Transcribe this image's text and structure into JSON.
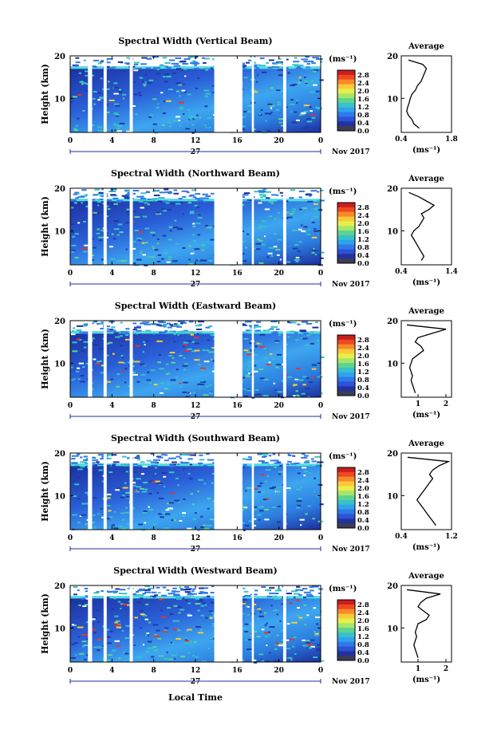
{
  "figure": {
    "xlabel": "Local Time",
    "date_label": "Nov 2017",
    "day_label": "27",
    "x_ticks": [
      "0",
      "4",
      "8",
      "12",
      "16",
      "20",
      "0"
    ],
    "y_ticks": [
      "20",
      "10"
    ],
    "ylabel": "Height (km)",
    "colorbar_unit": "(ms⁻¹)",
    "colorbar_ticks": [
      "2.8",
      "2.4",
      "2.0",
      "1.6",
      "1.2",
      "0.8",
      "0.4",
      "0.0"
    ],
    "avg_title": "Average",
    "avg_xlabel": "(ms⁻¹)",
    "colors": {
      "low": "#1c2f9e",
      "mid": "#3da6f0",
      "high": "#e5352a",
      "colorbar": [
        "#c81e1e",
        "#ee4a22",
        "#f88a28",
        "#f9c93a",
        "#e9ef4a",
        "#a5e66a",
        "#5ed391",
        "#38c1c8",
        "#2fa2ec",
        "#2f79e8",
        "#2c52d6",
        "#23319e",
        "#3a3d55"
      ]
    }
  },
  "chart_data": [
    {
      "type": "heatmap",
      "title": "Spectral Width (Vertical Beam)",
      "x_unit": "hour (local time)",
      "xlim": [
        0,
        24
      ],
      "ylabel": "Height (km)",
      "ylim": [
        2,
        20
      ],
      "color_range": [
        0.0,
        2.8
      ],
      "data_gaps_hours": [
        [
          1.7,
          2.1
        ],
        [
          3.2,
          3.5
        ],
        [
          5.7,
          6.0
        ],
        [
          13.8,
          16.5
        ],
        [
          17.4,
          17.6
        ],
        [
          20.4,
          20.7
        ]
      ],
      "average_profile": {
        "xlim": [
          0.4,
          1.8
        ],
        "x_ticks": [
          "0.4",
          "1.8"
        ],
        "height_km": [
          3,
          4,
          5,
          6,
          7,
          8,
          9,
          10,
          11,
          12,
          13,
          14,
          15,
          16,
          17,
          18,
          19
        ],
        "width_ms": [
          0.9,
          0.75,
          0.7,
          0.6,
          0.55,
          0.58,
          0.62,
          0.65,
          0.7,
          0.8,
          0.85,
          0.95,
          1.0,
          1.05,
          1.1,
          1.0,
          0.6
        ]
      }
    },
    {
      "type": "heatmap",
      "title": "Spectral Width (Northward Beam)",
      "x_unit": "hour (local time)",
      "xlim": [
        0,
        24
      ],
      "ylabel": "Height (km)",
      "ylim": [
        2,
        20
      ],
      "color_range": [
        0.0,
        2.8
      ],
      "data_gaps_hours": [
        [
          1.7,
          2.1
        ],
        [
          3.2,
          3.5
        ],
        [
          5.7,
          6.0
        ],
        [
          13.8,
          16.5
        ],
        [
          17.4,
          17.6
        ],
        [
          20.4,
          20.7
        ]
      ],
      "average_profile": {
        "xlim": [
          0.4,
          1.4
        ],
        "x_ticks": [
          "0.4",
          "1.4"
        ],
        "height_km": [
          3,
          4,
          5,
          6,
          7,
          8,
          9,
          10,
          11,
          12,
          13,
          14,
          15,
          16,
          17,
          18,
          19
        ],
        "width_ms": [
          0.8,
          0.85,
          0.8,
          0.75,
          0.7,
          0.65,
          0.6,
          0.65,
          0.75,
          0.8,
          0.85,
          0.8,
          0.95,
          1.05,
          0.9,
          0.75,
          0.55
        ]
      }
    },
    {
      "type": "heatmap",
      "title": "Spectral Width (Eastward Beam)",
      "x_unit": "hour (local time)",
      "xlim": [
        0,
        24
      ],
      "ylabel": "Height (km)",
      "ylim": [
        2,
        20
      ],
      "color_range": [
        0.0,
        2.8
      ],
      "data_gaps_hours": [
        [
          1.7,
          2.1
        ],
        [
          3.2,
          3.5
        ],
        [
          5.7,
          6.0
        ],
        [
          13.8,
          16.5
        ],
        [
          17.4,
          17.6
        ],
        [
          20.4,
          20.7
        ]
      ],
      "average_profile": {
        "xlim": [
          0.4,
          2.2
        ],
        "x_ticks": [
          "1",
          "2"
        ],
        "height_km": [
          3,
          4,
          5,
          6,
          7,
          8,
          9,
          10,
          11,
          12,
          13,
          14,
          15,
          16,
          17,
          18,
          19
        ],
        "width_ms": [
          0.9,
          0.85,
          0.8,
          0.75,
          0.8,
          0.75,
          0.7,
          0.75,
          0.8,
          1.0,
          1.2,
          1.1,
          0.9,
          1.0,
          1.5,
          2.0,
          0.6
        ]
      }
    },
    {
      "type": "heatmap",
      "title": "Spectral Width (Southward Beam)",
      "x_unit": "hour (local time)",
      "xlim": [
        0,
        24
      ],
      "ylabel": "Height (km)",
      "ylim": [
        2,
        20
      ],
      "color_range": [
        0.0,
        2.8
      ],
      "data_gaps_hours": [
        [
          1.7,
          2.1
        ],
        [
          3.2,
          3.5
        ],
        [
          5.7,
          6.0
        ],
        [
          13.8,
          16.5
        ],
        [
          17.4,
          17.6
        ],
        [
          20.4,
          20.7
        ]
      ],
      "average_profile": {
        "xlim": [
          0.4,
          1.2
        ],
        "x_ticks": [
          "0.4",
          "1.2"
        ],
        "height_km": [
          3,
          4,
          5,
          6,
          7,
          8,
          9,
          10,
          11,
          12,
          13,
          14,
          15,
          16,
          17,
          18,
          19
        ],
        "width_ms": [
          0.95,
          0.9,
          0.85,
          0.8,
          0.75,
          0.7,
          0.65,
          0.7,
          0.75,
          0.8,
          0.85,
          0.9,
          0.85,
          0.9,
          1.0,
          1.15,
          0.5
        ]
      }
    },
    {
      "type": "heatmap",
      "title": "Spectral Width (Westward Beam)",
      "x_unit": "hour (local time)",
      "xlim": [
        0,
        24
      ],
      "ylabel": "Height (km)",
      "ylim": [
        2,
        20
      ],
      "color_range": [
        0.0,
        2.8
      ],
      "data_gaps_hours": [
        [
          1.7,
          2.1
        ],
        [
          3.2,
          3.5
        ],
        [
          5.7,
          6.0
        ],
        [
          13.8,
          16.5
        ],
        [
          17.4,
          17.6
        ],
        [
          20.4,
          20.7
        ]
      ],
      "average_profile": {
        "xlim": [
          0.4,
          2.2
        ],
        "x_ticks": [
          "1",
          "2"
        ],
        "height_km": [
          3,
          4,
          5,
          6,
          7,
          8,
          9,
          10,
          11,
          12,
          13,
          14,
          15,
          16,
          17,
          18,
          19
        ],
        "width_ms": [
          1.0,
          0.95,
          0.9,
          0.85,
          0.9,
          0.95,
          0.9,
          0.95,
          1.0,
          1.3,
          1.4,
          1.2,
          1.0,
          1.1,
          1.3,
          1.8,
          0.6
        ]
      }
    }
  ]
}
